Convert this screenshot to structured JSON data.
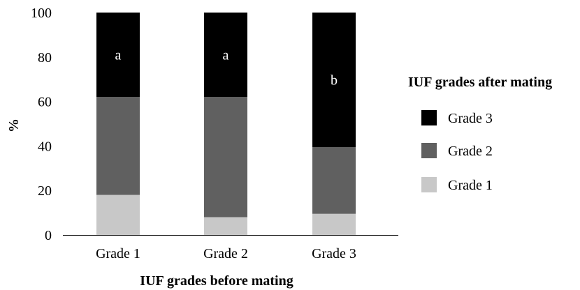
{
  "chart_data": {
    "type": "bar",
    "stacked": true,
    "categories": [
      "Grade 1",
      "Grade 2",
      "Grade 3"
    ],
    "series": [
      {
        "name": "Grade 1",
        "values": [
          18,
          8,
          9.5
        ],
        "color": "#c8c8c8"
      },
      {
        "name": "Grade 2",
        "values": [
          44,
          54,
          30
        ],
        "color": "#606060"
      },
      {
        "name": "Grade 3",
        "values": [
          38,
          38,
          60.5
        ],
        "color": "#000000"
      }
    ],
    "annotations": [
      "a",
      "a",
      "b"
    ],
    "xlabel": "IUF grades before mating",
    "ylabel": "%",
    "ylim": [
      0,
      100
    ],
    "yticks": [
      0,
      20,
      40,
      60,
      80,
      100
    ],
    "legend": {
      "title": "IUF grades after mating",
      "placement": "right",
      "order": [
        "Grade 3",
        "Grade 2",
        "Grade 1"
      ]
    },
    "grid": false
  }
}
